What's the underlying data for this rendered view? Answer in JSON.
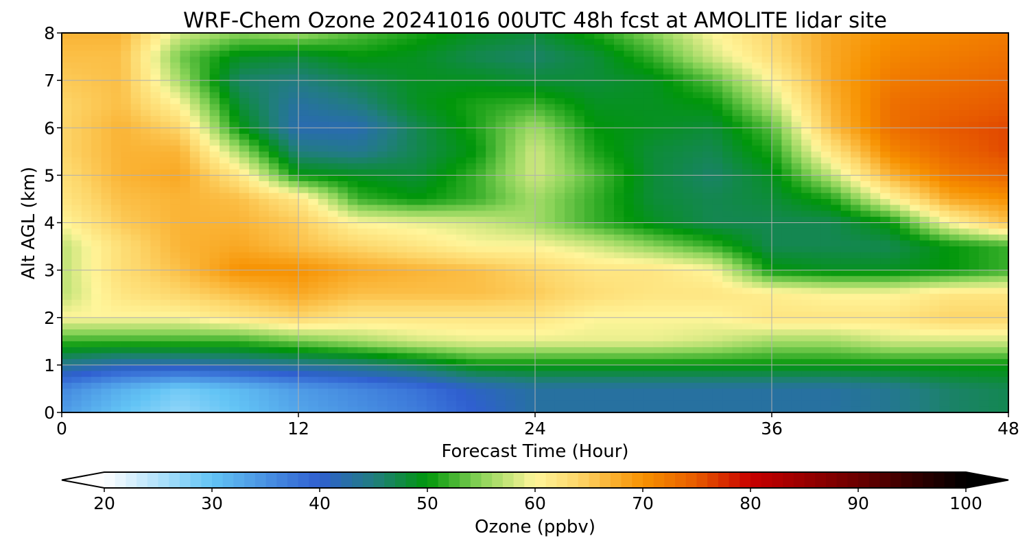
{
  "chart_data": {
    "type": "heatmap",
    "title": "WRF-Chem Ozone  20241016 00UTC 48h fcst at AMOLITE lidar site",
    "xlabel": "Forecast Time (Hour)",
    "ylabel": "Alt AGL (km)",
    "xlim": [
      0,
      48
    ],
    "ylim": [
      0,
      8
    ],
    "xticks": [
      "0",
      "12",
      "24",
      "36",
      "48"
    ],
    "yticks": [
      "0",
      "1",
      "2",
      "3",
      "4",
      "5",
      "6",
      "7",
      "8"
    ],
    "grid": true,
    "x": [
      0,
      3,
      6,
      9,
      12,
      15,
      18,
      21,
      24,
      27,
      30,
      33,
      36,
      39,
      42,
      45,
      48
    ],
    "y": [
      0,
      0.5,
      1,
      1.5,
      2,
      2.5,
      3,
      3.5,
      4,
      4.5,
      5,
      5.5,
      6,
      6.5,
      7,
      7.5,
      8
    ],
    "z": [
      [
        34,
        30,
        27,
        30,
        33,
        35,
        37,
        40,
        43,
        43,
        43,
        43,
        43,
        43,
        44,
        46,
        47
      ],
      [
        36,
        32,
        29,
        31,
        34,
        36,
        38,
        41,
        43,
        43,
        43,
        43,
        43,
        43,
        44,
        46,
        47
      ],
      [
        44,
        42,
        42,
        43,
        44,
        45,
        47,
        50,
        50,
        50,
        50,
        50,
        50,
        50,
        50,
        50,
        50
      ],
      [
        52,
        52,
        52,
        52,
        54,
        56,
        58,
        59,
        59,
        59,
        59,
        58,
        56,
        56,
        58,
        58,
        58
      ],
      [
        60,
        60,
        60,
        62,
        64,
        62,
        62,
        62,
        62,
        60,
        60,
        60,
        62,
        62,
        62,
        64,
        64
      ],
      [
        57,
        62,
        64,
        66,
        68,
        66,
        66,
        66,
        65,
        63,
        62,
        62,
        61,
        60,
        60,
        62,
        62
      ],
      [
        57,
        63,
        66,
        70,
        70,
        68,
        67,
        66,
        64,
        62,
        62,
        60,
        50,
        49,
        49,
        50,
        52
      ],
      [
        57,
        63,
        67,
        68,
        66,
        64,
        62,
        60,
        60,
        58,
        55,
        52,
        47,
        47,
        47,
        50,
        52
      ],
      [
        60,
        65,
        67,
        67,
        65,
        60,
        59,
        58,
        56,
        52,
        49,
        47,
        47,
        47,
        50,
        60,
        66
      ],
      [
        62,
        66,
        67,
        66,
        62,
        52,
        50,
        52,
        56,
        52,
        48,
        47,
        48,
        51,
        60,
        68,
        70
      ],
      [
        63,
        67,
        68,
        62,
        50,
        49,
        48,
        52,
        58,
        53,
        48,
        46,
        49,
        57,
        67,
        72,
        74
      ],
      [
        64,
        67,
        67,
        56,
        45,
        44,
        47,
        50,
        58,
        51,
        48,
        47,
        51,
        62,
        71,
        74,
        76
      ],
      [
        64,
        67,
        64,
        50,
        42,
        42,
        47,
        51,
        56,
        50,
        49,
        48,
        53,
        66,
        73,
        75,
        76
      ],
      [
        64,
        66,
        60,
        48,
        43,
        45,
        49,
        51,
        52,
        49,
        49,
        50,
        57,
        67,
        73,
        74,
        75
      ],
      [
        65,
        66,
        56,
        46,
        45,
        47,
        49,
        49,
        48,
        48,
        49,
        53,
        60,
        68,
        72,
        73,
        74
      ],
      [
        66,
        66,
        54,
        49,
        48,
        50,
        49,
        47,
        46,
        48,
        52,
        58,
        63,
        68,
        71,
        72,
        73
      ],
      [
        67,
        67,
        58,
        55,
        56,
        53,
        51,
        49,
        48,
        51,
        55,
        60,
        64,
        68,
        70,
        71,
        72
      ]
    ],
    "colorbar": {
      "label": "Ozone  (ppbv)",
      "ticks": [
        "20",
        "30",
        "40",
        "50",
        "60",
        "70",
        "80",
        "90",
        "100"
      ],
      "range": [
        20,
        100
      ],
      "extend": "both",
      "stops": [
        {
          "v": 20,
          "c": "#ffffff"
        },
        {
          "v": 30,
          "c": "#63c4f5"
        },
        {
          "v": 40,
          "c": "#2f5fd0"
        },
        {
          "v": 45,
          "c": "#217d80"
        },
        {
          "v": 50,
          "c": "#00960a"
        },
        {
          "v": 55,
          "c": "#8cd45a"
        },
        {
          "v": 60,
          "c": "#fff59a"
        },
        {
          "v": 64,
          "c": "#fdd66a"
        },
        {
          "v": 70,
          "c": "#f79100"
        },
        {
          "v": 75,
          "c": "#e75a00"
        },
        {
          "v": 80,
          "c": "#c80000"
        },
        {
          "v": 90,
          "c": "#6a0000"
        },
        {
          "v": 100,
          "c": "#000000"
        }
      ]
    }
  }
}
